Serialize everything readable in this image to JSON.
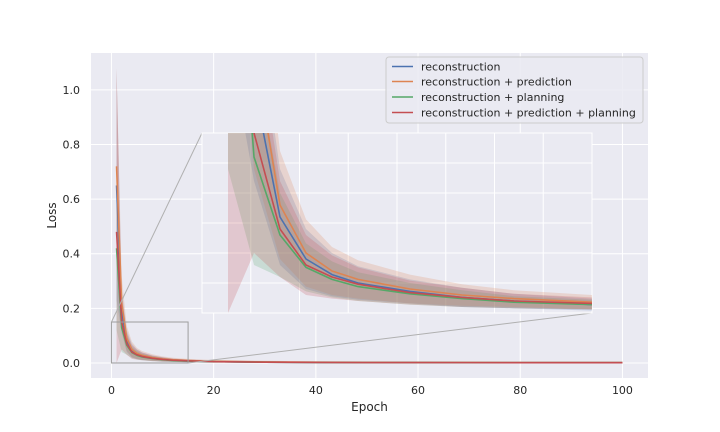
{
  "chart_data": {
    "type": "line",
    "xlabel": "Epoch",
    "ylabel": "Loss",
    "xlim": [
      -4,
      105
    ],
    "ylim": [
      -0.055,
      1.135
    ],
    "xticks": [
      0,
      20,
      40,
      60,
      80,
      100
    ],
    "yticks": [
      0.0,
      0.2,
      0.4,
      0.6,
      0.8,
      1.0
    ],
    "grid": true,
    "legend_position": "top-right",
    "inset": {
      "xlim": [
        0,
        15
      ],
      "ylim": [
        0,
        0.15
      ]
    },
    "series": [
      {
        "name": "reconstruction",
        "color": "#4c72b0",
        "x": [
          1,
          2,
          3,
          4,
          5,
          6,
          8,
          10,
          12,
          15,
          20,
          30,
          40,
          50,
          60,
          70,
          80,
          90,
          100
        ],
        "y": [
          0.65,
          0.19,
          0.08,
          0.045,
          0.032,
          0.025,
          0.018,
          0.013,
          0.01,
          0.007,
          0.005,
          0.003,
          0.002,
          0.0017,
          0.0015,
          0.0013,
          0.0012,
          0.0011,
          0.001
        ],
        "spread": [
          0.42,
          0.08,
          0.04,
          0.025,
          0.018,
          0.014,
          0.01,
          0.008,
          0.006,
          0.005,
          0.004,
          0.003,
          0.002,
          0.002,
          0.0015,
          0.0015,
          0.001,
          0.001,
          0.001
        ]
      },
      {
        "name": "reconstruction + prediction",
        "color": "#dd8452",
        "x": [
          1,
          2,
          3,
          4,
          5,
          6,
          8,
          10,
          12,
          15,
          20,
          30,
          40,
          50,
          60,
          70,
          80,
          90,
          100
        ],
        "y": [
          0.72,
          0.22,
          0.09,
          0.05,
          0.035,
          0.028,
          0.02,
          0.015,
          0.012,
          0.009,
          0.006,
          0.004,
          0.003,
          0.0025,
          0.002,
          0.0018,
          0.0016,
          0.0015,
          0.0014
        ],
        "spread": [
          0.36,
          0.1,
          0.045,
          0.028,
          0.02,
          0.016,
          0.012,
          0.009,
          0.007,
          0.006,
          0.005,
          0.004,
          0.003,
          0.002,
          0.002,
          0.0015,
          0.0015,
          0.001,
          0.001
        ]
      },
      {
        "name": "reconstruction + planning",
        "color": "#55a868",
        "x": [
          1,
          2,
          3,
          4,
          5,
          6,
          8,
          10,
          12,
          15,
          20,
          30,
          40,
          50,
          60,
          70,
          80,
          90,
          100
        ],
        "y": [
          0.42,
          0.13,
          0.065,
          0.038,
          0.028,
          0.022,
          0.016,
          0.012,
          0.009,
          0.007,
          0.005,
          0.003,
          0.002,
          0.0017,
          0.0015,
          0.0013,
          0.0012,
          0.0011,
          0.001
        ],
        "spread": [
          0.3,
          0.09,
          0.035,
          0.02,
          0.015,
          0.012,
          0.009,
          0.007,
          0.005,
          0.004,
          0.003,
          0.002,
          0.0015,
          0.0015,
          0.001,
          0.001,
          0.001,
          0.001,
          0.001
        ]
      },
      {
        "name": "reconstruction + prediction + planning",
        "color": "#c44e52",
        "x": [
          1,
          2,
          3,
          4,
          5,
          6,
          8,
          10,
          12,
          15,
          20,
          30,
          40,
          50,
          60,
          70,
          80,
          90,
          100
        ],
        "y": [
          0.48,
          0.15,
          0.07,
          0.04,
          0.03,
          0.024,
          0.017,
          0.013,
          0.01,
          0.008,
          0.005,
          0.003,
          0.002,
          0.0017,
          0.0015,
          0.0013,
          0.0012,
          0.0011,
          0.001
        ],
        "spread": [
          0.6,
          0.1,
          0.04,
          0.025,
          0.018,
          0.014,
          0.01,
          0.008,
          0.006,
          0.005,
          0.004,
          0.003,
          0.002,
          0.0015,
          0.0015,
          0.001,
          0.001,
          0.001,
          0.001
        ]
      }
    ]
  }
}
